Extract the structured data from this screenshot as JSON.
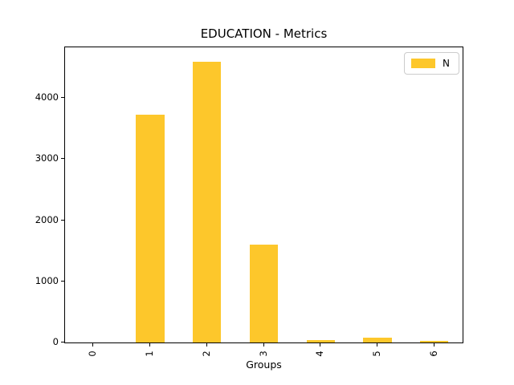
{
  "title": "EDUCATION - Metrics",
  "colors": {
    "bar": "#FDC72B",
    "spine": "#000000",
    "background": "#ffffff",
    "legend_border": "#cccccc"
  },
  "legend": {
    "entries": [
      {
        "label": "N",
        "swatch_color": "#FDC72B"
      }
    ],
    "position": "upper right"
  },
  "chart_data": {
    "type": "bar",
    "title": "EDUCATION - Metrics",
    "xlabel": "Groups",
    "ylabel": "",
    "categories": [
      "0",
      "1",
      "2",
      "3",
      "4",
      "5",
      "6"
    ],
    "series": [
      {
        "name": "N",
        "values": [
          0,
          3730,
          4600,
          1600,
          35,
          75,
          20
        ]
      }
    ],
    "bar_color": "#FDC72B",
    "yticks": [
      0,
      1000,
      2000,
      3000,
      4000
    ],
    "ylim": [
      0,
      4830
    ],
    "grid": false,
    "legend_position": "upper right",
    "x_tick_rotation": 90,
    "bar_width_fraction": 0.5
  }
}
